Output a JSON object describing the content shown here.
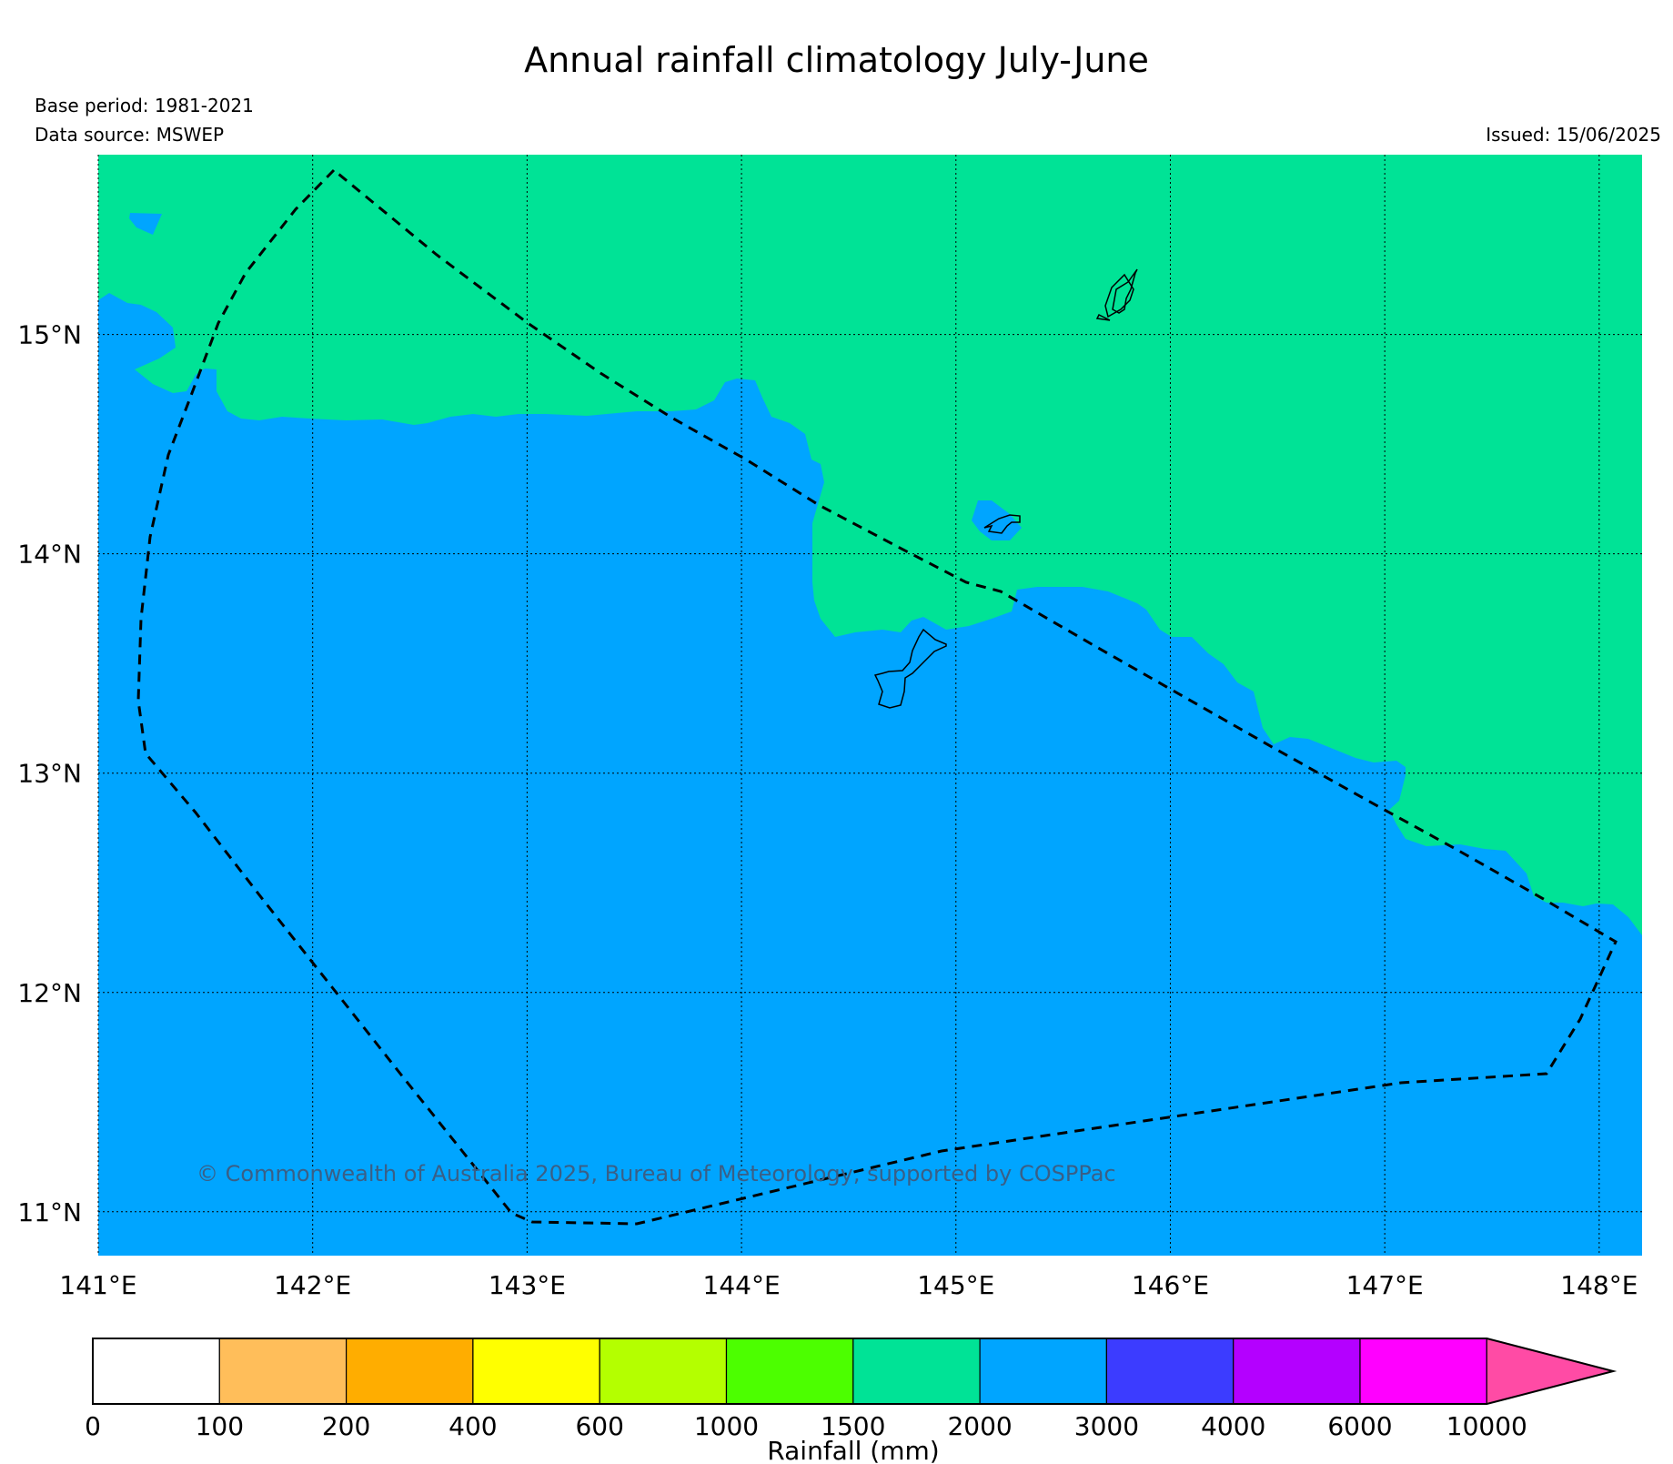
{
  "title": "Annual rainfall climatology July-June",
  "base_period": "Base period: 1981-2021",
  "data_source": "Data source: MSWEP",
  "issued": "Issued: 15/06/2025",
  "copyright": "© Commonwealth of Australia 2025, Bureau of Meteorology, supported by COSPPac",
  "map": {
    "lon_range": [
      141.0,
      148.2
    ],
    "lat_range": [
      10.8,
      15.82
    ],
    "lon_ticks": [
      {
        "value": 141,
        "label": "141°E"
      },
      {
        "value": 142,
        "label": "142°E"
      },
      {
        "value": 143,
        "label": "143°E"
      },
      {
        "value": 144,
        "label": "144°E"
      },
      {
        "value": 145,
        "label": "145°E"
      },
      {
        "value": 146,
        "label": "146°E"
      },
      {
        "value": 147,
        "label": "147°E"
      },
      {
        "value": 148,
        "label": "148°E"
      }
    ],
    "lat_ticks": [
      {
        "value": 11,
        "label": "11°N"
      },
      {
        "value": 12,
        "label": "12°N"
      },
      {
        "value": 13,
        "label": "13°N"
      },
      {
        "value": 14,
        "label": "14°N"
      },
      {
        "value": 15,
        "label": "15°N"
      }
    ],
    "gridlines": true,
    "fill_colors": {
      "band_1500_2000": "#00e396",
      "band_2000_3000": "#00a5ff"
    }
  },
  "colorbar": {
    "label": "Rainfall (mm)",
    "ticks": [
      "0",
      "100",
      "200",
      "400",
      "600",
      "1000",
      "1500",
      "2000",
      "3000",
      "4000",
      "6000",
      "10000"
    ],
    "colors": [
      "#ffffff",
      "#ffbe5a",
      "#ffad00",
      "#ffff00",
      "#b4ff00",
      "#4cff00",
      "#00e396",
      "#00a5ff",
      "#3c3cff",
      "#b400ff",
      "#ff00ff",
      "#ff4ba5"
    ],
    "extend": "max"
  }
}
